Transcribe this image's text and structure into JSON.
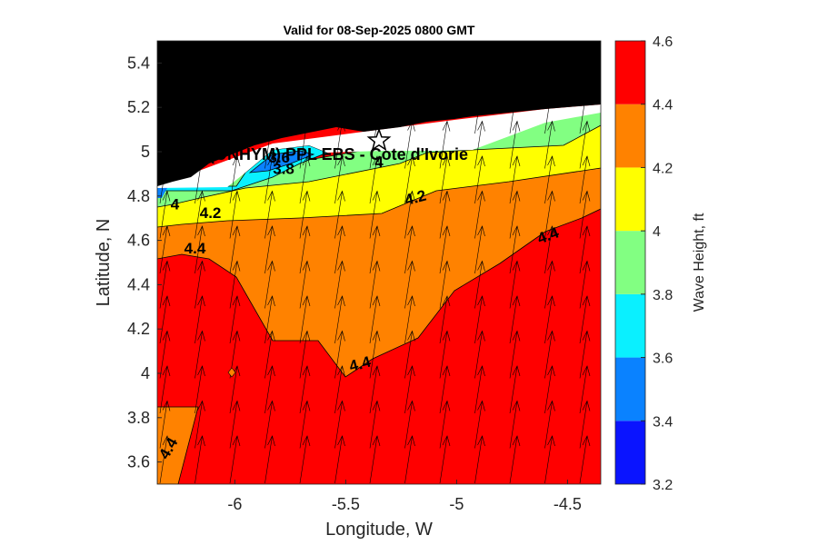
{
  "chart_data": {
    "type": "heatmap",
    "title": "Valid for 08-Sep-2025 0800 GMT",
    "xlabel": "Longitude, W",
    "ylabel": "Latitude, N",
    "xlim": [
      -6.35,
      -4.35
    ],
    "ylim": [
      3.5,
      5.5
    ],
    "xticks": [
      -6,
      -5.5,
      -5,
      -4.5
    ],
    "xtick_labels": [
      "-6",
      "-5.5",
      "-5",
      "-4.5"
    ],
    "yticks": [
      3.6,
      3.8,
      4,
      4.2,
      4.4,
      4.6,
      4.8,
      5,
      5.2,
      5.4
    ],
    "ytick_labels": [
      "3.6",
      "3.8",
      "4",
      "4.2",
      "4.4",
      "4.6",
      "4.8",
      "5",
      "5.2",
      "5.4"
    ],
    "colorbar": {
      "label": "Wave Height, ft",
      "range": [
        3.2,
        4.6
      ],
      "ticks": [
        3.2,
        3.4,
        3.6,
        3.8,
        4,
        4.2,
        4.4,
        4.6
      ],
      "tick_labels": [
        "3.2",
        "3.4",
        "3.6",
        "3.8",
        "4",
        "4.2",
        "4.4",
        "4.6"
      ],
      "bands": [
        {
          "from": 3.2,
          "to": 3.4,
          "color": "#0a14ff"
        },
        {
          "from": 3.4,
          "to": 3.6,
          "color": "#0a82ff"
        },
        {
          "from": 3.6,
          "to": 3.8,
          "color": "#0af0ff"
        },
        {
          "from": 3.8,
          "to": 4.0,
          "color": "#82ff82"
        },
        {
          "from": 4.0,
          "to": 4.2,
          "color": "#ffff00"
        },
        {
          "from": 4.2,
          "to": 4.4,
          "color": "#ff8200"
        },
        {
          "from": 4.4,
          "to": 4.6,
          "color": "#ff0000"
        }
      ]
    },
    "land_color": "#000000",
    "contour_labels": [
      {
        "text": "3.6",
        "lon": -5.8,
        "lat": 4.95,
        "angle": 0
      },
      {
        "text": "3.8",
        "lon": -5.78,
        "lat": 4.9,
        "angle": 0
      },
      {
        "text": "4",
        "lon": -5.35,
        "lat": 4.93,
        "angle": 0
      },
      {
        "text": "4",
        "lon": -6.27,
        "lat": 4.74,
        "angle": 0
      },
      {
        "text": "4.2",
        "lon": -6.11,
        "lat": 4.7,
        "angle": 0
      },
      {
        "text": "4.2",
        "lon": -5.18,
        "lat": 4.77,
        "angle": -15
      },
      {
        "text": "4.4",
        "lon": -6.18,
        "lat": 4.54,
        "angle": 0
      },
      {
        "text": "4.4",
        "lon": -4.58,
        "lat": 4.6,
        "angle": -20
      },
      {
        "text": "4.4",
        "lon": -5.43,
        "lat": 4.02,
        "angle": -15
      },
      {
        "text": "4.4",
        "lon": -6.28,
        "lat": 3.65,
        "angle": -60
      }
    ],
    "site": {
      "label": "(ONHYM) PPL EBS - Cote d'Ivorie",
      "lon": -5.35,
      "lat": 5.05
    },
    "wind_vectors": "uniform grid of thin black arrows pointing north-northeast"
  }
}
